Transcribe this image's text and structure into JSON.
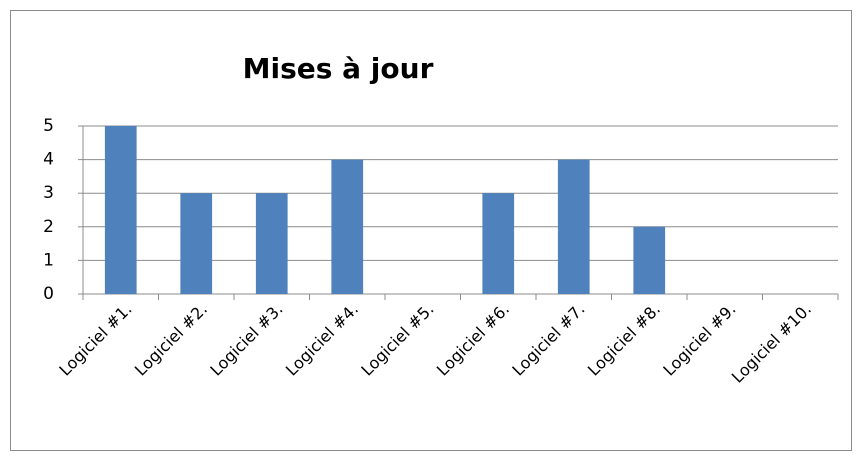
{
  "chart_data": {
    "type": "bar",
    "title": "Mises à jour",
    "categories": [
      "Logiciel #1.",
      "Logiciel #2.",
      "Logiciel #3.",
      "Logiciel #4.",
      "Logiciel #5.",
      "Logiciel #6.",
      "Logiciel #7.",
      "Logiciel #8.",
      "Logiciel #9.",
      "Logiciel #10."
    ],
    "values": [
      5,
      3,
      3,
      4,
      0,
      3,
      4,
      2,
      0,
      0
    ],
    "color": "#4f81bd",
    "ylim": [
      0,
      5
    ],
    "yticks": [
      0,
      1,
      2,
      3,
      4,
      5
    ],
    "grid": true
  }
}
